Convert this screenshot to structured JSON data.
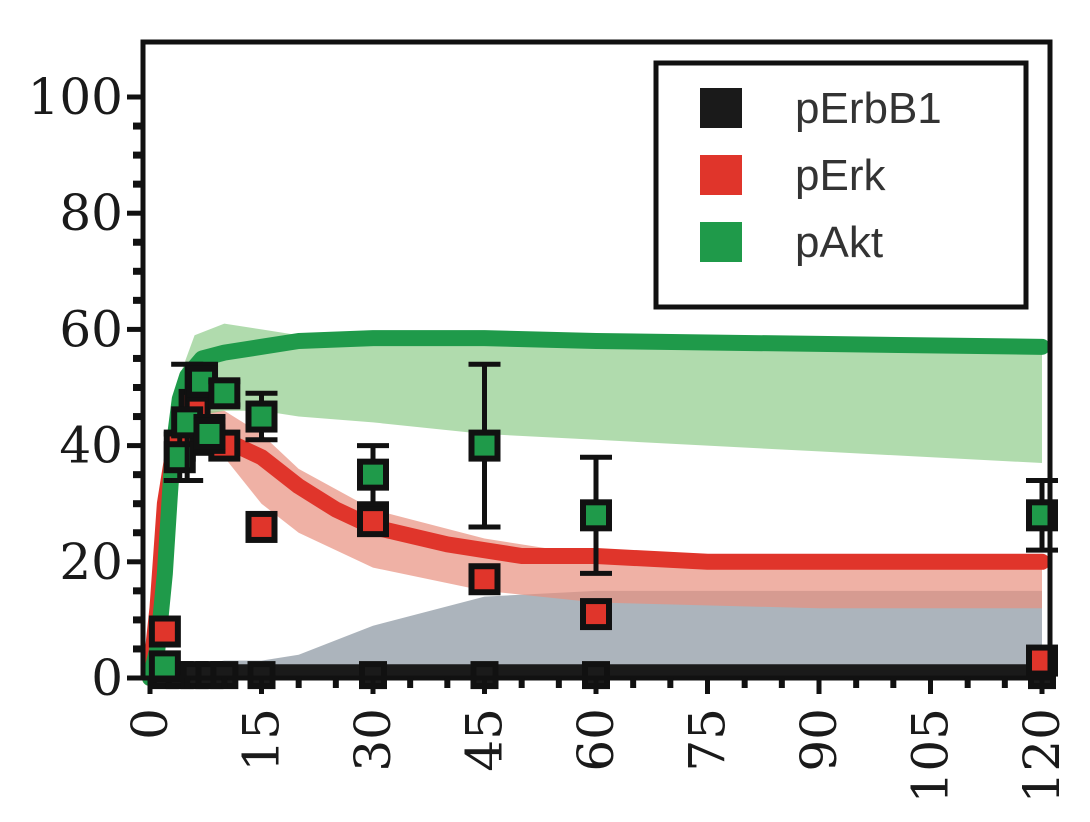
{
  "chart_data": {
    "type": "line",
    "title": "",
    "xlabel": "",
    "ylabel": "",
    "xlim": [
      0,
      120
    ],
    "ylim": [
      0,
      105
    ],
    "x_ticks": [
      0,
      15,
      30,
      45,
      60,
      75,
      90,
      105,
      120
    ],
    "y_ticks": [
      0,
      20,
      40,
      60,
      80,
      100
    ],
    "grid": false,
    "legend_position": "top-right",
    "series": [
      {
        "name": "pErbB1",
        "color": "#1a1a1a",
        "model_x": [
          0,
          120
        ],
        "model_y": [
          1,
          1
        ],
        "band_lower": [
          0,
          0,
          0,
          0,
          0,
          0,
          0,
          0,
          0,
          0
        ],
        "band_upper": [
          2,
          2,
          3,
          3,
          4,
          9,
          14,
          15,
          15,
          15
        ],
        "band_x": [
          0,
          5,
          10,
          15,
          20,
          30,
          45,
          60,
          90,
          120
        ],
        "points": [
          {
            "x": 2,
            "y": 0.5
          },
          {
            "x": 4,
            "y": 0.5
          },
          {
            "x": 6,
            "y": 0.5
          },
          {
            "x": 8,
            "y": 0.5
          },
          {
            "x": 10,
            "y": 0.5
          },
          {
            "x": 15,
            "y": 0.5
          },
          {
            "x": 30,
            "y": 0.5
          },
          {
            "x": 45,
            "y": 0.5
          },
          {
            "x": 60,
            "y": 0.5
          },
          {
            "x": 120,
            "y": 0.5
          }
        ]
      },
      {
        "name": "pErk",
        "color": "#e0352b",
        "band_color": "#e8907f",
        "model_x": [
          0,
          1,
          2,
          3,
          4,
          5,
          7,
          10,
          15,
          20,
          25,
          30,
          40,
          45,
          50,
          60,
          75,
          90,
          105,
          120
        ],
        "model_y": [
          0,
          12,
          30,
          38,
          42,
          43,
          42,
          41,
          38,
          33,
          29,
          26,
          23,
          22,
          21,
          21,
          20,
          20,
          20,
          20
        ],
        "band_x": [
          0,
          2,
          4,
          6,
          10,
          15,
          20,
          30,
          45,
          60,
          90,
          120
        ],
        "band_lower": [
          0,
          20,
          35,
          40,
          38,
          30,
          25,
          19,
          15,
          13,
          12,
          12
        ],
        "band_upper": [
          0,
          32,
          44,
          46,
          46,
          42,
          36,
          29,
          24,
          21,
          20,
          19
        ],
        "points": [
          {
            "x": 2,
            "y": 8,
            "err": 0
          },
          {
            "x": 4,
            "y": 40,
            "err": 0
          },
          {
            "x": 6,
            "y": 47,
            "err": 0
          },
          {
            "x": 8,
            "y": 41,
            "err": 0
          },
          {
            "x": 10,
            "y": 40,
            "err": 0
          },
          {
            "x": 15,
            "y": 26,
            "err": 0
          },
          {
            "x": 30,
            "y": 27,
            "err": 0
          },
          {
            "x": 45,
            "y": 17,
            "err": 0
          },
          {
            "x": 60,
            "y": 11,
            "err": 0
          },
          {
            "x": 120,
            "y": 3,
            "err": 0
          }
        ]
      },
      {
        "name": "pAkt",
        "color": "#1f9a4a",
        "band_color": "#8fcc8a",
        "model_x": [
          0,
          1,
          2,
          3,
          4,
          5,
          7,
          10,
          15,
          20,
          30,
          45,
          60,
          90,
          120
        ],
        "model_y": [
          0,
          5,
          18,
          38,
          48,
          52,
          55,
          56,
          57,
          58,
          58.5,
          58.5,
          58,
          57.5,
          57
        ],
        "band_x": [
          0,
          2,
          4,
          6,
          10,
          15,
          20,
          30,
          45,
          60,
          90,
          120
        ],
        "band_lower": [
          0,
          10,
          35,
          45,
          46,
          46,
          45,
          44,
          42,
          41,
          39,
          37
        ],
        "band_upper": [
          0,
          25,
          52,
          59,
          61,
          60,
          59,
          59,
          58,
          58,
          57,
          56
        ],
        "points": [
          {
            "x": 2,
            "y": 2,
            "err": 0
          },
          {
            "x": 4,
            "y": 38,
            "err": 4
          },
          {
            "x": 5,
            "y": 44,
            "err": 10
          },
          {
            "x": 7,
            "y": 51,
            "err": 3
          },
          {
            "x": 8,
            "y": 42,
            "err": 3
          },
          {
            "x": 10,
            "y": 49,
            "err": 2
          },
          {
            "x": 15,
            "y": 45,
            "err": 4
          },
          {
            "x": 30,
            "y": 35,
            "err": 5
          },
          {
            "x": 45,
            "y": 40,
            "err": 14
          },
          {
            "x": 60,
            "y": 28,
            "err": 10
          },
          {
            "x": 120,
            "y": 28,
            "err": 6
          }
        ]
      }
    ]
  }
}
